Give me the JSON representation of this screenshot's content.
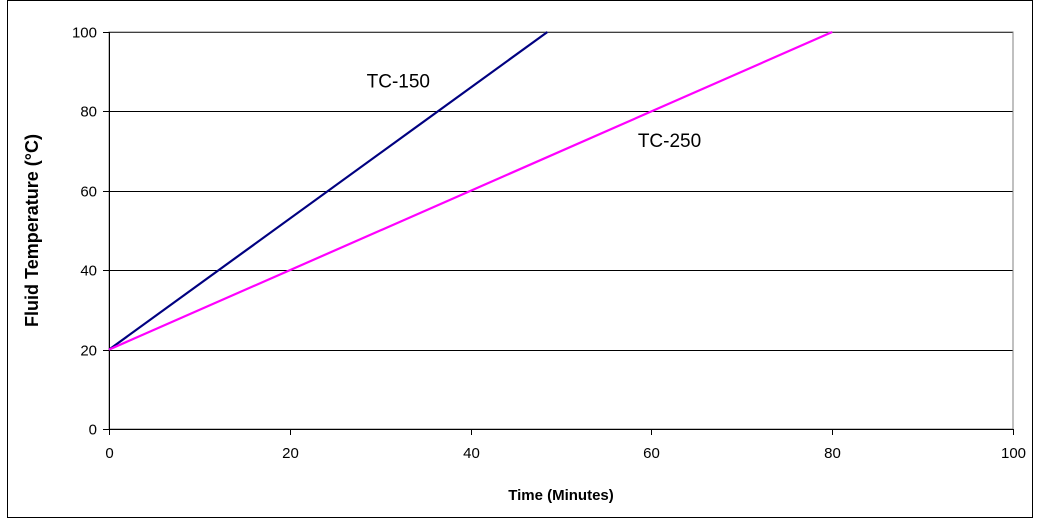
{
  "chart_data": {
    "type": "line",
    "title": "",
    "xlabel": "Time (Minutes)",
    "ylabel": "Fluid Temperature (°C)",
    "xlim": [
      0,
      100
    ],
    "ylim": [
      0,
      100
    ],
    "x_ticks": [
      0,
      20,
      40,
      60,
      80,
      100
    ],
    "y_ticks": [
      0,
      20,
      40,
      60,
      80,
      100
    ],
    "grid": "horizontal",
    "legend": "none",
    "series": [
      {
        "name": "TC-150",
        "color": "#000080",
        "x": [
          0,
          48.5
        ],
        "y": [
          20,
          100
        ],
        "label_at": [
          28.5,
          86
        ]
      },
      {
        "name": "TC-250",
        "color": "#FF00FF",
        "x": [
          0,
          80
        ],
        "y": [
          20,
          100
        ],
        "label_at": [
          58.5,
          71
        ]
      }
    ]
  }
}
